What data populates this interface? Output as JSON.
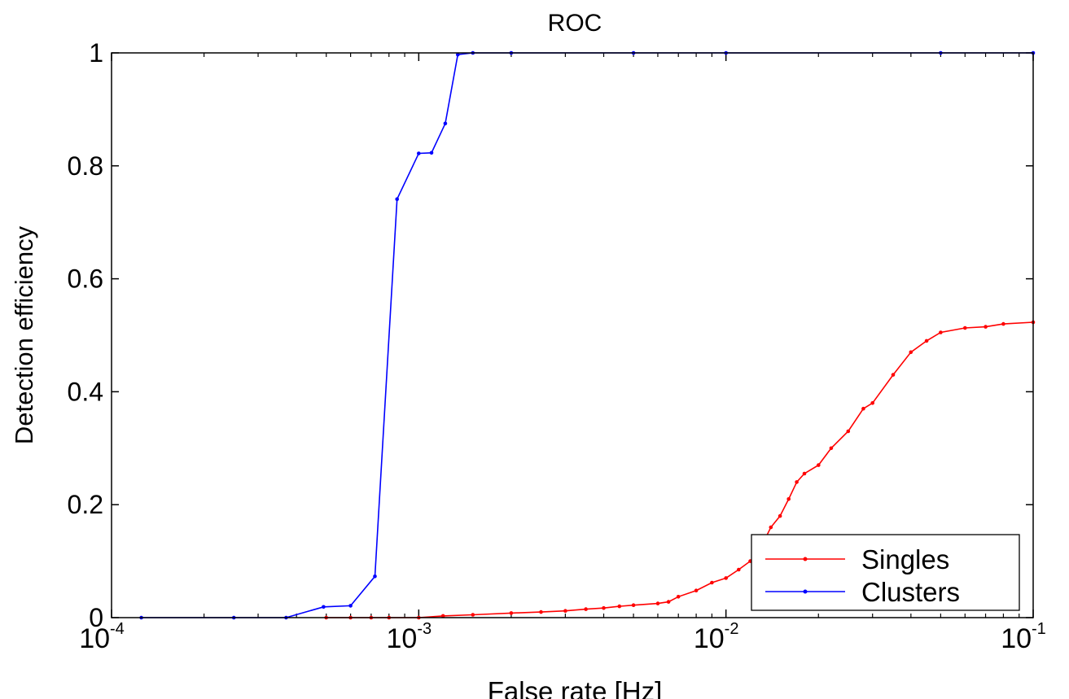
{
  "chart_data": {
    "type": "line",
    "title": "ROC",
    "xlabel": "False rate [Hz]",
    "ylabel": "Detection efficiency",
    "xscale": "log",
    "xlim": [
      0.0001,
      0.1
    ],
    "ylim": [
      0,
      1
    ],
    "grid": false,
    "legend_position": "bottom-right",
    "x_ticks": [
      {
        "value": 0.0001,
        "base": "10",
        "exp": "-4"
      },
      {
        "value": 0.001,
        "base": "10",
        "exp": "-3"
      },
      {
        "value": 0.01,
        "base": "10",
        "exp": "-2"
      },
      {
        "value": 0.1,
        "base": "10",
        "exp": "-1"
      }
    ],
    "y_ticks": [
      {
        "value": 0,
        "label": "0"
      },
      {
        "value": 0.2,
        "label": "0.2"
      },
      {
        "value": 0.4,
        "label": "0.4"
      },
      {
        "value": 0.6,
        "label": "0.6"
      },
      {
        "value": 0.8,
        "label": "0.8"
      },
      {
        "value": 1,
        "label": "1"
      }
    ],
    "series": [
      {
        "name": "Singles",
        "color": "#ff0000",
        "points": [
          [
            0.0005,
            0.0
          ],
          [
            0.0006,
            0.0
          ],
          [
            0.0007,
            0.0
          ],
          [
            0.0008,
            0.0
          ],
          [
            0.001,
            0.0
          ],
          [
            0.0012,
            0.003
          ],
          [
            0.0015,
            0.005
          ],
          [
            0.002,
            0.008
          ],
          [
            0.0025,
            0.01
          ],
          [
            0.003,
            0.012
          ],
          [
            0.0035,
            0.015
          ],
          [
            0.004,
            0.017
          ],
          [
            0.0045,
            0.02
          ],
          [
            0.005,
            0.022
          ],
          [
            0.006,
            0.025
          ],
          [
            0.0065,
            0.028
          ],
          [
            0.007,
            0.037
          ],
          [
            0.008,
            0.048
          ],
          [
            0.009,
            0.062
          ],
          [
            0.01,
            0.07
          ],
          [
            0.011,
            0.085
          ],
          [
            0.012,
            0.1
          ],
          [
            0.013,
            0.125
          ],
          [
            0.014,
            0.16
          ],
          [
            0.015,
            0.18
          ],
          [
            0.016,
            0.21
          ],
          [
            0.017,
            0.24
          ],
          [
            0.018,
            0.255
          ],
          [
            0.02,
            0.27
          ],
          [
            0.022,
            0.3
          ],
          [
            0.025,
            0.33
          ],
          [
            0.028,
            0.37
          ],
          [
            0.03,
            0.38
          ],
          [
            0.035,
            0.43
          ],
          [
            0.04,
            0.47
          ],
          [
            0.045,
            0.49
          ],
          [
            0.05,
            0.505
          ],
          [
            0.06,
            0.513
          ],
          [
            0.07,
            0.515
          ],
          [
            0.08,
            0.52
          ],
          [
            0.1,
            0.523
          ]
        ]
      },
      {
        "name": "Clusters",
        "color": "#0000ff",
        "points": [
          [
            0.000125,
            0.0
          ],
          [
            0.00025,
            0.0
          ],
          [
            0.00037,
            0.0
          ],
          [
            0.00049,
            0.019
          ],
          [
            0.0006,
            0.021
          ],
          [
            0.00072,
            0.073
          ],
          [
            0.00085,
            0.741
          ],
          [
            0.001,
            0.822
          ],
          [
            0.0011,
            0.823
          ],
          [
            0.00122,
            0.875
          ],
          [
            0.00134,
            0.997
          ],
          [
            0.0015,
            1.0
          ],
          [
            0.002,
            1.0
          ],
          [
            0.005,
            1.0
          ],
          [
            0.01,
            1.0
          ],
          [
            0.05,
            1.0
          ],
          [
            0.1,
            1.0
          ]
        ]
      }
    ]
  }
}
